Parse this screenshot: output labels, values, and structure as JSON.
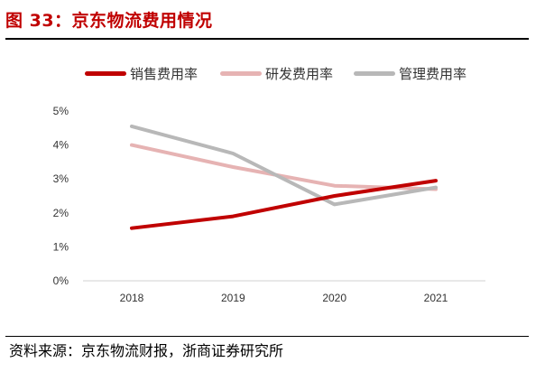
{
  "figure": {
    "title": "图 33：京东物流费用情况",
    "source": "资料来源：京东物流财报，浙商证券研究所"
  },
  "chart_data": {
    "type": "line",
    "title": "",
    "xlabel": "",
    "ylabel": "",
    "categories": [
      "2018",
      "2019",
      "2020",
      "2021"
    ],
    "y_ticks": [
      "0%",
      "1%",
      "2%",
      "3%",
      "4%",
      "5%"
    ],
    "ylim": [
      0,
      5
    ],
    "grid": false,
    "legend_position": "top",
    "series": [
      {
        "name": "销售费用率",
        "color": "#c00000",
        "values": [
          1.55,
          1.9,
          2.5,
          2.95
        ]
      },
      {
        "name": "研发费用率",
        "color": "#e6b3b3",
        "values": [
          4.0,
          3.35,
          2.8,
          2.7
        ]
      },
      {
        "name": "管理费用率",
        "color": "#b8b8b8",
        "values": [
          4.55,
          3.75,
          2.25,
          2.75
        ]
      }
    ]
  }
}
